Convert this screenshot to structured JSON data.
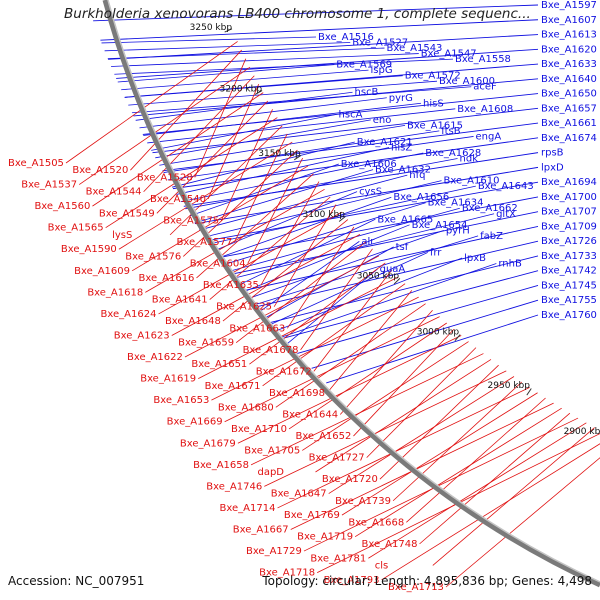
{
  "header": {
    "title": "Burkholderia xenovorans LB400 chromosome 1, complete sequenc..."
  },
  "footer": {
    "accession": "Accession: NC_007951",
    "summary": "Topology: circular; Length: 4,895,836 bp; Genes: 4,498"
  },
  "colors": {
    "forward_strand": "#1010e0",
    "reverse_strand": "#e01010",
    "backbone": "#888888",
    "marker": "#1a8a1a"
  },
  "ticks": [
    "3250 kbp",
    "3200 kbp",
    "3150 kbp",
    "3100 kbp",
    "3050 kbp",
    "3000 kbp",
    "2950 kbp",
    "2900 kbp"
  ],
  "labels_right": [
    "Bxe_A1597",
    "Bxe_A1607",
    "Bxe_A1613",
    "Bxe_A1620",
    "Bxe_A1633",
    "Bxe_A1640",
    "Bxe_A1650",
    "Bxe_A1657",
    "Bxe_A1661",
    "Bxe_A1674",
    "rpsB",
    "lpxD",
    "Bxe_A1694",
    "Bxe_A1700",
    "Bxe_A1707",
    "Bxe_A1709",
    "Bxe_A1726",
    "Bxe_A1733",
    "Bxe_A1742",
    "Bxe_A1745",
    "Bxe_A1755",
    "Bxe_A1760"
  ],
  "labels_inner_blue": [
    "Bxe_A1516",
    "Bxe_A1527",
    "Bxe_A1543",
    "Bxe_A1547",
    "Bxe_A1558",
    "Bxe_A1569",
    "ispG",
    "Bxe_A1572",
    "Bxe_A1600",
    "aceF",
    "hscB",
    "pyrG",
    "hisS",
    "Bxe_A1608",
    "hscA",
    "eno",
    "Bxe_A1615",
    "ftsB",
    "engA",
    "Bxe_A1621",
    "hisZ",
    "Bxe_A1628",
    "ndk",
    "Bxe_A1606",
    "Bxe_A1632",
    "hfq",
    "Bxe_A1610",
    "Bxe_A1643",
    "cysS",
    "Bxe_A1656",
    "Bxe_A1634",
    "Bxe_A1662",
    "gltX",
    "Bxe_A1665",
    "Bxe_A1654",
    "pyrH",
    "fabZ",
    "alr",
    "tsf",
    "frr",
    "lpxB",
    "rnhB",
    "guaA"
  ],
  "labels_left": [
    "Bxe_A1505",
    "Bxe_A1520",
    "Bxe_A1528",
    "Bxe_A1537",
    "Bxe_A1544",
    "Bxe_A1540",
    "Bxe_A1560",
    "Bxe_A1549",
    "Bxe_A1575",
    "Bxe_A1565",
    "lysS",
    "Bxe_A1577",
    "Bxe_A1590",
    "Bxe_A1576",
    "Bxe_A1604",
    "Bxe_A1609",
    "Bxe_A1616",
    "Bxe_A1635",
    "Bxe_A1618",
    "Bxe_A1641",
    "Bxe_A1625",
    "Bxe_A1624",
    "Bxe_A1648",
    "Bxe_A1663",
    "Bxe_A1623",
    "Bxe_A1659",
    "Bxe_A1678",
    "Bxe_A1622",
    "Bxe_A1651",
    "Bxe_A1672",
    "Bxe_A1619",
    "Bxe_A1671",
    "Bxe_A1698",
    "Bxe_A1653",
    "Bxe_A1680",
    "Bxe_A1644",
    "Bxe_A1669",
    "Bxe_A1710",
    "Bxe_A1652",
    "Bxe_A1679",
    "Bxe_A1705",
    "Bxe_A1727",
    "Bxe_A1658",
    "dapD",
    "Bxe_A1720",
    "Bxe_A1746",
    "Bxe_A1647",
    "Bxe_A1739",
    "Bxe_A1714",
    "Bxe_A1769",
    "Bxe_A1668",
    "Bxe_A1667",
    "Bxe_A1719",
    "Bxe_A1748",
    "Bxe_A1729",
    "Bxe_A1781",
    "cls",
    "Bxe_A1718",
    "Bxe_A1793",
    "Bxe_A1713"
  ]
}
